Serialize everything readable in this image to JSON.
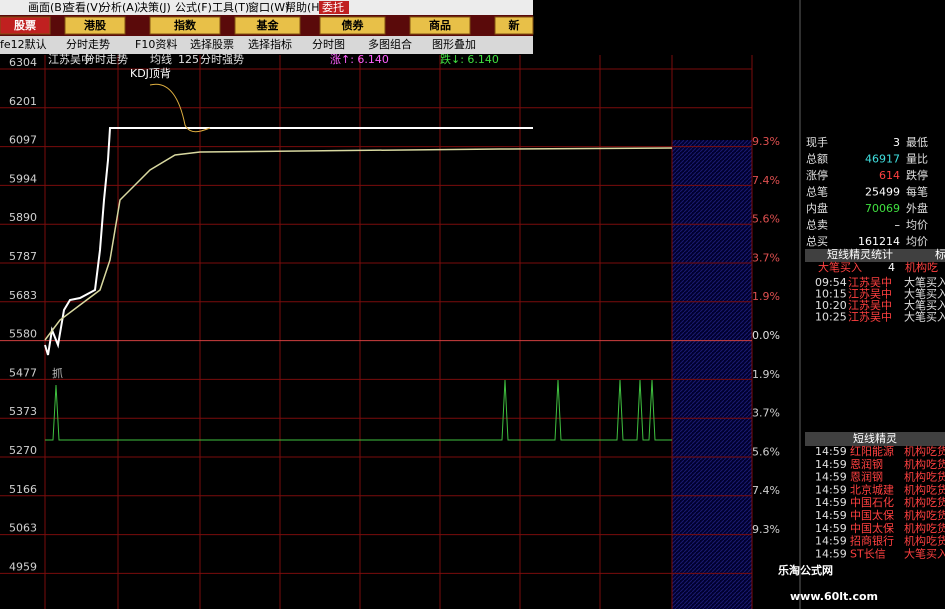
{
  "menu": [
    "画面(B)",
    "查看(V)",
    "分析(A)",
    "决策(J)",
    "公式(F)",
    "工具(T)",
    "窗口(W)",
    "帮助(H)",
    "委托"
  ],
  "tabs": [
    "股票",
    "港股",
    "指数",
    "基金",
    "债券",
    "商品",
    "新"
  ],
  "toolbar": [
    "fe12默认",
    "分时走势",
    "F10资料",
    "选择股票",
    "选择指标",
    "分时图",
    "多图组合",
    "图形叠加"
  ],
  "chart_header": [
    "江苏吴中",
    "分时走势",
    "均线",
    "125",
    "分时强势",
    "涨↑: 6.140",
    "跌↓: 6.140"
  ],
  "annotations": [
    "KDJ顶背",
    "抓"
  ],
  "left_axis": [
    "6304",
    "6201",
    "6097",
    "5994",
    "5890",
    "5787",
    "5683",
    "5580",
    "5477",
    "5373",
    "5270",
    "5166",
    "5063",
    "4959"
  ],
  "right_axis": [
    "9.3%",
    "7.4%",
    "5.6%",
    "3.7%",
    "1.9%",
    "0.0%",
    "1.9%",
    "3.7%",
    "5.6%",
    "7.4%",
    "9.3%"
  ],
  "quote_panel": [
    [
      "现手",
      "3",
      "最低"
    ],
    [
      "总额",
      "46917",
      "量比"
    ],
    [
      "涨停",
      "614",
      "跌停"
    ],
    [
      "总笔",
      "25499",
      "每笔"
    ],
    [
      "内盘",
      "70069",
      "外盘"
    ],
    [
      "总卖",
      "–",
      "均价"
    ],
    [
      "总买",
      "161214",
      "均价"
    ]
  ],
  "sprite_stats": {
    "title": "短线精灵统计",
    "tab": "标",
    "header": [
      "大笔买入",
      "4",
      "机构吃"
    ],
    "rows": [
      [
        "09:54",
        "江苏吴中",
        "大笔买入"
      ],
      [
        "10:15",
        "江苏吴中",
        "大笔买入"
      ],
      [
        "10:20",
        "江苏吴中",
        "大笔买入"
      ],
      [
        "10:25",
        "江苏吴中",
        "大笔买入"
      ]
    ]
  },
  "sprite": {
    "title": "短线精灵",
    "rows": [
      [
        "14:59",
        "红阳能源",
        "机构吃货"
      ],
      [
        "14:59",
        "恩润钢",
        "机构吃货"
      ],
      [
        "14:59",
        "恩润钢",
        "机构吃货"
      ],
      [
        "14:59",
        "北京城建",
        "机构吃货"
      ],
      [
        "14:59",
        "中国石化",
        "机构吃货"
      ],
      [
        "14:59",
        "中国太保",
        "机构吃货"
      ],
      [
        "14:59",
        "中国太保",
        "机构吃货"
      ],
      [
        "14:59",
        "招商银行",
        "机构吃货"
      ],
      [
        "14:59",
        "ST长信",
        "大笔买入"
      ]
    ]
  },
  "watermark": {
    "title": "乐淘公式网",
    "url": "www.60lt.com"
  }
}
